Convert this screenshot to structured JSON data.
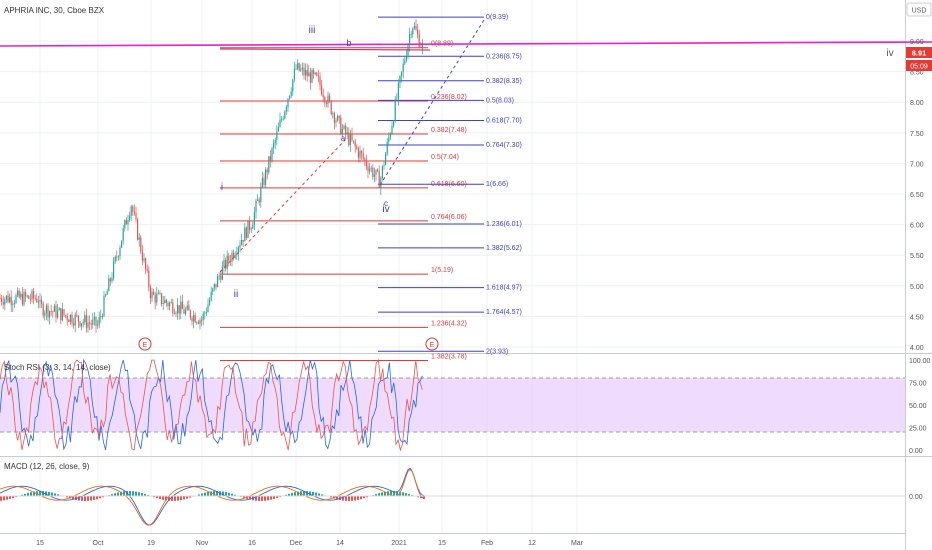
{
  "header": {
    "title": "APHRIA INC, 30, Cboe BZX"
  },
  "currency": "USD",
  "colors": {
    "bg": "#ffffff",
    "grid": "#eef0f3",
    "text": "#333333",
    "up": "#26a69a",
    "down": "#ef5350",
    "fibRed": "#e53935",
    "fibBlue": "#3f3fd0",
    "magenta": "#e81fd0",
    "wave": "#3a3ab5",
    "rsiK": "#2962ff",
    "rsiD": "#ef5350",
    "rsiBand": "#e1bdf9",
    "priceTag": "#e53935"
  },
  "price_axis": {
    "ticks": [
      "9.00",
      "8.50",
      "8.00",
      "7.50",
      "7.00",
      "6.50",
      "6.00",
      "5.50",
      "5.00",
      "4.50",
      "4.00"
    ],
    "last_price": "8.91",
    "countdown": "05:09",
    "min": 3.9,
    "max": 9.6
  },
  "time_axis": {
    "labels": [
      "15",
      "Oct",
      "19",
      "Nov",
      "16",
      "Dec",
      "14",
      "2021",
      "15",
      "Feb",
      "12",
      "Mar"
    ]
  },
  "indicators": {
    "stoch": {
      "label": "Stoch RSI (3, 3, 14, 14, close)",
      "ticks": [
        "100.00",
        "75.00",
        "50.00",
        "25.00",
        "0.00"
      ],
      "upper": 80,
      "lower": 20
    },
    "macd": {
      "label": "MACD (12, 26, close, 9)",
      "ticks": [
        "0.00"
      ]
    }
  },
  "waves": [
    "iii",
    "iv",
    "iv",
    "ii",
    "i",
    "b",
    "c",
    "a"
  ],
  "events": [
    "E",
    "E"
  ],
  "chart_data": {
    "type": "candlestick",
    "symbol": "APHRIA INC",
    "interval": "30",
    "exchange": "Cboe BZX",
    "ylim": [
      3.9,
      9.6
    ],
    "approx_closes": [
      {
        "x": "Sep 15",
        "y": 4.65
      },
      {
        "x": "Oct",
        "y": 4.35
      },
      {
        "x": "Oct 12",
        "y": 6.35
      },
      {
        "x": "Oct 19",
        "y": 4.85
      },
      {
        "x": "Nov",
        "y": 4.45
      },
      {
        "x": "Nov 9",
        "y": 5.2
      },
      {
        "x": "Nov 16",
        "y": 6.05
      },
      {
        "x": "Nov 30",
        "y": 8.55
      },
      {
        "x": "Dec 7",
        "y": 8.35
      },
      {
        "x": "Dec 14",
        "y": 7.6
      },
      {
        "x": "Dec 21",
        "y": 6.7
      },
      {
        "x": "Jan 4",
        "y": 9.3
      },
      {
        "x": "Jan 7",
        "y": 8.91
      }
    ],
    "fib_left": [
      {
        "label": "0(8.89)",
        "value": 8.89
      },
      {
        "label": "0.236(8.02)",
        "value": 8.02
      },
      {
        "label": "0.382(7.48)",
        "value": 7.48
      },
      {
        "label": "0.5(7.04)",
        "value": 7.04
      },
      {
        "label": "0.618(6.60)",
        "value": 6.6
      },
      {
        "label": "0.764(6.06)",
        "value": 6.06
      },
      {
        "label": "1(5.19)",
        "value": 5.19
      },
      {
        "label": "1.236(4.32)",
        "value": 4.32
      },
      {
        "label": "1.382(3.78)",
        "value": 3.78
      }
    ],
    "fib_right": [
      {
        "label": "0(9.39)",
        "value": 9.39
      },
      {
        "label": "0.236(8.75)",
        "value": 8.75
      },
      {
        "label": "0.382(8.35)",
        "value": 8.35
      },
      {
        "label": "0.5(8.03)",
        "value": 8.03
      },
      {
        "label": "0.618(7.70)",
        "value": 7.7
      },
      {
        "label": "0.764(7.30)",
        "value": 7.3
      },
      {
        "label": "1(6.66)",
        "value": 6.66
      },
      {
        "label": "1.236(6.01)",
        "value": 6.01
      },
      {
        "label": "1.382(5.62)",
        "value": 5.62
      },
      {
        "label": "1.618(4.97)",
        "value": 4.97
      },
      {
        "label": "1.764(4.57)",
        "value": 4.57
      },
      {
        "label": "2(3.93)",
        "value": 3.93
      }
    ]
  }
}
